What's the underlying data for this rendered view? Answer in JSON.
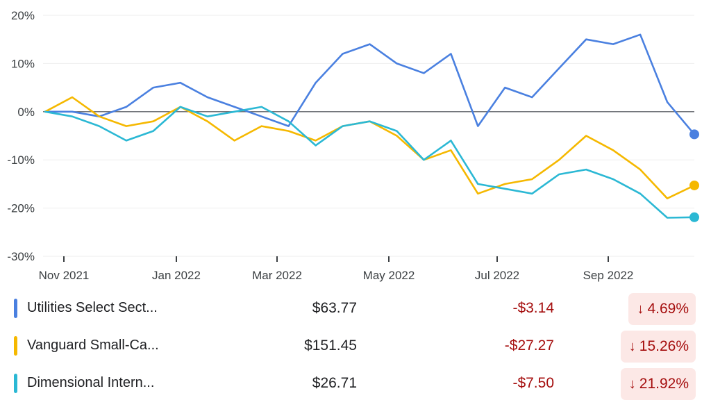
{
  "chart_data": {
    "type": "line",
    "x_tick_labels": [
      "Nov 2021",
      "Jan 2022",
      "Mar 2022",
      "May 2022",
      "Jul 2022",
      "Sep 2022"
    ],
    "y_tick_labels": [
      "20%",
      "10%",
      "0%",
      "-10%",
      "-20%",
      "-30%"
    ],
    "ylim": [
      -30,
      20
    ],
    "x": [
      "Oct 20",
      "Nov 4",
      "Nov 19",
      "Dec 4",
      "Dec 19",
      "Jan 3",
      "Jan 18",
      "Feb 2",
      "Feb 17",
      "Mar 4",
      "Mar 19",
      "Apr 3",
      "Apr 18",
      "May 3",
      "May 18",
      "Jun 2",
      "Jun 17",
      "Jul 2",
      "Jul 17",
      "Aug 1",
      "Aug 16",
      "Aug 31",
      "Sep 15",
      "Sep 30",
      "Oct 14"
    ],
    "series": [
      {
        "name": "Utilities Select Sect...",
        "color": "#4a80e0",
        "values": [
          0,
          0,
          -1,
          1,
          5,
          6,
          3,
          1,
          -1,
          -3,
          6,
          12,
          14,
          10,
          8,
          12,
          -3,
          5,
          3,
          9,
          15,
          14,
          16,
          2,
          -4.7
        ]
      },
      {
        "name": "Vanguard Small-Ca...",
        "color": "#f5b800",
        "values": [
          0,
          3,
          -1,
          -3,
          -2,
          1,
          -2,
          -6,
          -3,
          -4,
          -6,
          -3,
          -2,
          -5,
          -10,
          -8,
          -17,
          -15,
          -14,
          -10,
          -5,
          -8,
          -12,
          -18,
          -15.3
        ]
      },
      {
        "name": "Dimensional Intern...",
        "color": "#2bb8d4",
        "values": [
          0,
          -1,
          -3,
          -6,
          -4,
          1,
          -1,
          0,
          1,
          -2,
          -7,
          -3,
          -2,
          -4,
          -10,
          -6,
          -15,
          -16,
          -17,
          -13,
          -12,
          -14,
          -17,
          -22,
          -21.9
        ]
      }
    ]
  },
  "legend": [
    {
      "name": "Utilities Select Sect...",
      "price": "$63.77",
      "change": "-$3.14",
      "arrow": "↓",
      "percent": "4.69%",
      "color": "#4a80e0"
    },
    {
      "name": "Vanguard Small-Ca...",
      "price": "$151.45",
      "change": "-$27.27",
      "arrow": "↓",
      "percent": "15.26%",
      "color": "#f5b800"
    },
    {
      "name": "Dimensional Intern...",
      "price": "$26.71",
      "change": "-$7.50",
      "arrow": "↓",
      "percent": "21.92%",
      "color": "#2bb8d4"
    }
  ]
}
